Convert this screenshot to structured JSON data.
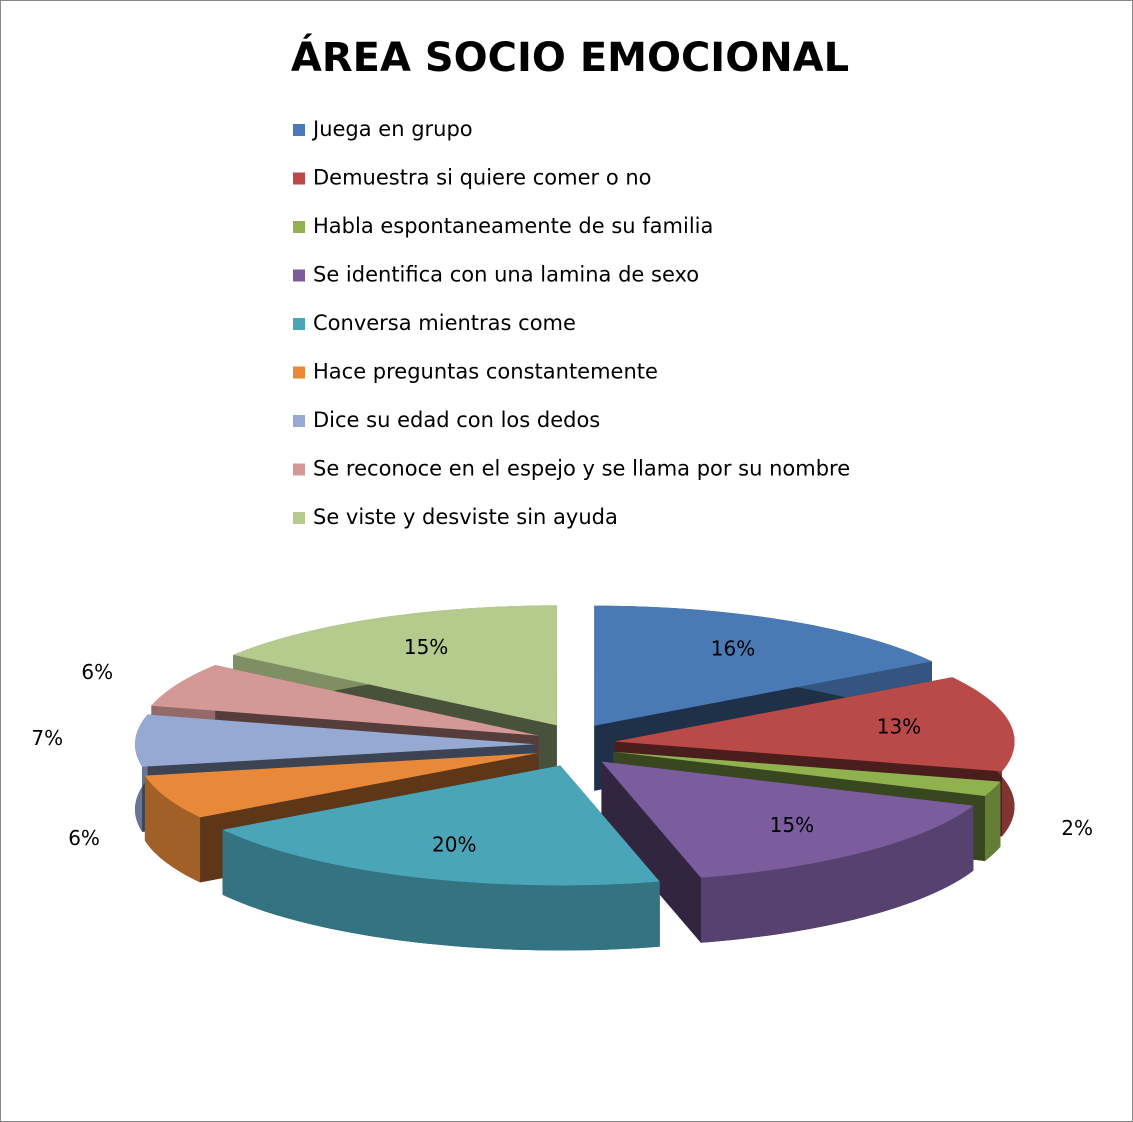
{
  "chart_data": {
    "type": "pie",
    "title": "ÁREA SOCIO EMOCIONAL",
    "categories": [
      "Juega en grupo",
      "Demuestra si quiere comer o no",
      "Habla espontaneamente de su familia",
      "Se identifica con una lamina de sexo",
      "Conversa mientras come",
      "Hace preguntas constantemente",
      "Dice su edad con los dedos",
      "Se reconoce en el espejo y se llama por su nombre",
      "Se viste y desviste sin ayuda"
    ],
    "values": [
      16,
      13,
      2,
      15,
      20,
      6,
      7,
      6,
      15
    ],
    "value_labels": [
      "16%",
      "13%",
      "2%",
      "15%",
      "20%",
      "6%",
      "7%",
      "6%",
      "15%"
    ],
    "colors": [
      "#4a7ab5",
      "#b94a48",
      "#8fb24f",
      "#7b5d9e",
      "#4aa5b8",
      "#e8893a",
      "#95a9d3",
      "#d49896",
      "#b5cb8e"
    ],
    "legend": "top"
  }
}
